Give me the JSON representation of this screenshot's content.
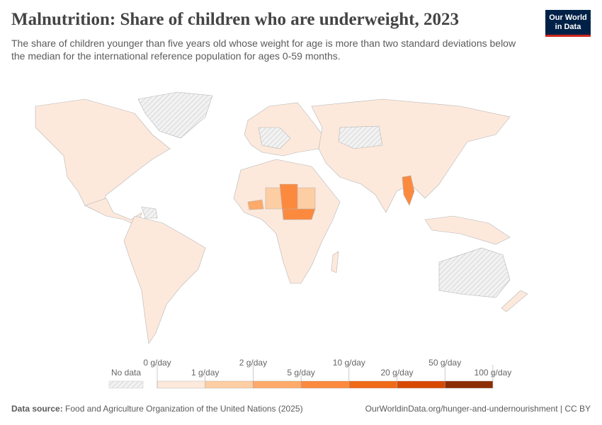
{
  "header": {
    "title": "Malnutrition: Share of children who are underweight, 2023",
    "subtitle": "The share of children younger than five years old whose weight for age is more than two standard deviations below the median for the international reference population for ages 0-59 months.",
    "logo_text": "Our World in Data"
  },
  "legend": {
    "no_data_label": "No data",
    "no_data_pattern": "hatched-gray",
    "bins": [
      {
        "label": "0 g/day",
        "color": "#fde9dc"
      },
      {
        "label": "1 g/day",
        "color": "#fdcda3"
      },
      {
        "label": "2 g/day",
        "color": "#fdaa6a"
      },
      {
        "label": "5 g/day",
        "color": "#fb8a3f"
      },
      {
        "label": "10 g/day",
        "color": "#f06a17"
      },
      {
        "label": "20 g/day",
        "color": "#d74802"
      },
      {
        "label": "50 g/day",
        "color": "#8c2d04"
      }
    ],
    "last_label": "100 g/day"
  },
  "footer": {
    "source_label": "Data source:",
    "source": "Food and Agriculture Organization of the United Nations (2025)",
    "url": "OurWorldinData.org/hunger-and-undernourishment | CC BY"
  },
  "colors": {
    "land": "#fde9dc",
    "border": "#aaaaaa",
    "no_data": "#eeeeee"
  }
}
